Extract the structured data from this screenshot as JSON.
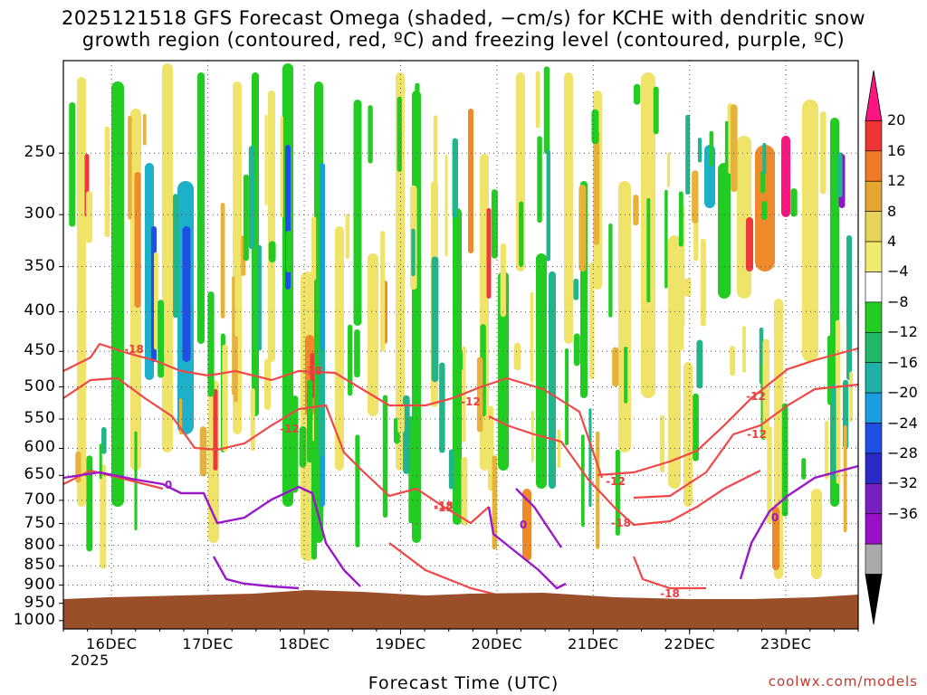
{
  "title": {
    "line1": "2025121518 GFS Forecast Omega (shaded, −cm/s) for KCHE with dendritic snow",
    "line2": "growth region (contoured, red, ºC) and freezing level (contoured, purple, ºC)"
  },
  "credit": "coolwx.com/models",
  "chart_data": {
    "type": "heatmap",
    "title": "2025121518 GFS Forecast Omega (shaded, −cm/s) for KCHE with dendritic snow growth region (contoured, red, ºC) and freezing level (contoured, purple, ºC)",
    "xlabel": "Forecast Time (UTC)",
    "ylabel": "",
    "x_ticks": [
      "16DEC",
      "17DEC",
      "18DEC",
      "19DEC",
      "20DEC",
      "21DEC",
      "22DEC",
      "23DEC"
    ],
    "x_tick_year": "2025",
    "y_ticks": [
      250,
      300,
      350,
      400,
      450,
      500,
      550,
      600,
      650,
      700,
      750,
      800,
      850,
      900,
      950,
      1000
    ],
    "x_range_hours": [
      -12,
      186
    ],
    "y_range_hpa": [
      190,
      1025
    ],
    "y_scale": "log",
    "grid": true,
    "colorbar": {
      "labels": [
        "20",
        "16",
        "12",
        "8",
        "4",
        "−4",
        "−8",
        "−12",
        "−16",
        "−20",
        "−24",
        "−28",
        "−32",
        "−36"
      ],
      "colors": [
        "#ff1580",
        "#ee3535",
        "#ee7a25",
        "#e4a62e",
        "#e8d35a",
        "#f0ea6e",
        "#ffffff",
        "#22cc22",
        "#22b86a",
        "#1fb0a8",
        "#1a9ee0",
        "#1f4fe5",
        "#2a2ac8",
        "#7a1fc4",
        "#9a0fc8",
        "#aaaaaa",
        "#000000"
      ]
    },
    "contour_labels": {
      "dendritic": [
        "-18",
        "-12",
        "-18",
        "-12",
        "-18",
        "-12",
        "-18",
        "-12",
        "-12",
        "-18",
        "-12",
        "-12"
      ],
      "freezing": [
        "0",
        "0",
        "0"
      ]
    },
    "terrain_color": "#9b4e2a",
    "dgz_color": "#f04848",
    "freezing_color": "#9a18c8"
  }
}
